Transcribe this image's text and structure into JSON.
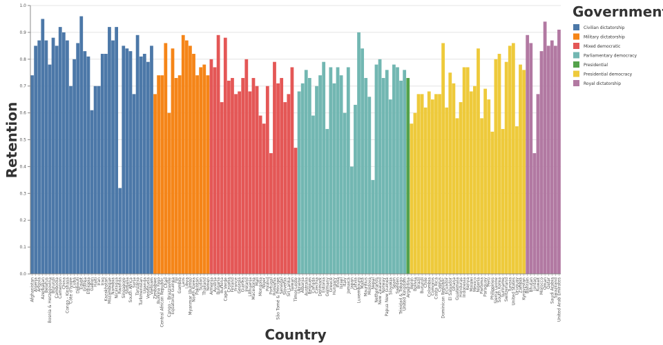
{
  "chart_data": {
    "type": "bar",
    "xlabel": "Country",
    "ylabel": "Retention",
    "ylim": [
      0,
      1
    ],
    "yticks": [
      "0.0",
      "0.1",
      "0.2",
      "0.3",
      "0.4",
      "0.5",
      "0.6",
      "0.7",
      "0.8",
      "0.9",
      "1.0"
    ],
    "grid": true,
    "legend_title": "Government",
    "legend_position": "top-right",
    "series": [
      {
        "name": "Civilian dictatorship",
        "color": "#4c78a8"
      },
      {
        "name": "Military dictatorship",
        "color": "#f58518"
      },
      {
        "name": "Mixed democratic",
        "color": "#e45756"
      },
      {
        "name": "Parliamentary democracy",
        "color": "#72b7b2"
      },
      {
        "name": "Presidential",
        "color": "#54a24b"
      },
      {
        "name": "Presidential democracy",
        "color": "#eeca3b"
      },
      {
        "name": "Royal dictatorship",
        "color": "#b279a2"
      }
    ],
    "bars": [
      {
        "c": "Afghanistan",
        "v": 0.74,
        "g": 0
      },
      {
        "c": "Algeria",
        "v": 0.85,
        "g": 0
      },
      {
        "c": "Angola",
        "v": 0.87,
        "g": 0
      },
      {
        "c": "Azerbaijan",
        "v": 0.95,
        "g": 0
      },
      {
        "c": "Belarus",
        "v": 0.87,
        "g": 0
      },
      {
        "c": "Bosnia & Herzegovina",
        "v": 0.78,
        "g": 0
      },
      {
        "c": "Burundi",
        "v": 0.88,
        "g": 0
      },
      {
        "c": "Cambodia",
        "v": 0.85,
        "g": 0
      },
      {
        "c": "Cameroon",
        "v": 0.92,
        "g": 0
      },
      {
        "c": "China",
        "v": 0.9,
        "g": 0
      },
      {
        "c": "Congo - Kinshasa",
        "v": 0.87,
        "g": 0
      },
      {
        "c": "Côte d'Ivoire",
        "v": 0.7,
        "g": 0
      },
      {
        "c": "Cuba",
        "v": 0.8,
        "g": 0
      },
      {
        "c": "Djibouti",
        "v": 0.86,
        "g": 0
      },
      {
        "c": "Egypt",
        "v": 0.96,
        "g": 0
      },
      {
        "c": "Eritrea",
        "v": 0.83,
        "g": 0
      },
      {
        "c": "Ethiopia",
        "v": 0.81,
        "g": 0
      },
      {
        "c": "Gabon",
        "v": 0.61,
        "g": 0
      },
      {
        "c": "Haiti",
        "v": 0.7,
        "g": 0
      },
      {
        "c": "Iran",
        "v": 0.7,
        "g": 0
      },
      {
        "c": "Iraq",
        "v": 0.82,
        "g": 0
      },
      {
        "c": "Kazakhstan",
        "v": 0.82,
        "g": 0
      },
      {
        "c": "Mozambique",
        "v": 0.92,
        "g": 0
      },
      {
        "c": "Namibia",
        "v": 0.87,
        "g": 0
      },
      {
        "c": "Nicaragua",
        "v": 0.92,
        "g": 0
      },
      {
        "c": "Rwanda",
        "v": 0.32,
        "g": 0
      },
      {
        "c": "Singapore",
        "v": 0.85,
        "g": 0
      },
      {
        "c": "Somalia",
        "v": 0.84,
        "g": 0
      },
      {
        "c": "South Africa",
        "v": 0.83,
        "g": 0
      },
      {
        "c": "Syria",
        "v": 0.67,
        "g": 0
      },
      {
        "c": "Tanzania",
        "v": 0.89,
        "g": 0
      },
      {
        "c": "Turkmenistan",
        "v": 0.81,
        "g": 0
      },
      {
        "c": "Uganda",
        "v": 0.82,
        "g": 0
      },
      {
        "c": "Venezuela",
        "v": 0.79,
        "g": 0
      },
      {
        "c": "Vietnam",
        "v": 0.85,
        "g": 0
      },
      {
        "c": "Zimbabwe",
        "v": 0.67,
        "g": 1
      },
      {
        "c": "Burkina Faso",
        "v": 0.74,
        "g": 1
      },
      {
        "c": "Central African Republic",
        "v": 0.74,
        "g": 1
      },
      {
        "c": "Chad",
        "v": 0.86,
        "g": 1
      },
      {
        "c": "Congo - Brazzaville",
        "v": 0.6,
        "g": 1
      },
      {
        "c": "Equatorial Guinea",
        "v": 0.84,
        "g": 1
      },
      {
        "c": "Fiji",
        "v": 0.73,
        "g": 1
      },
      {
        "c": "Gambia",
        "v": 0.74,
        "g": 1
      },
      {
        "c": "Laos",
        "v": 0.89,
        "g": 1
      },
      {
        "c": "Libya",
        "v": 0.87,
        "g": 1
      },
      {
        "c": "Myanmar (Burma)",
        "v": 0.85,
        "g": 1
      },
      {
        "c": "North Korea",
        "v": 0.82,
        "g": 1
      },
      {
        "c": "Pakistan",
        "v": 0.74,
        "g": 1
      },
      {
        "c": "Sudan",
        "v": 0.77,
        "g": 1
      },
      {
        "c": "Thailand",
        "v": 0.78,
        "g": 1
      },
      {
        "c": "Yemen",
        "v": 0.74,
        "g": 1
      },
      {
        "c": "Armenia",
        "v": 0.8,
        "g": 2
      },
      {
        "c": "Austria",
        "v": 0.77,
        "g": 2
      },
      {
        "c": "Bulgaria",
        "v": 0.89,
        "g": 2
      },
      {
        "c": "Burkina",
        "v": 0.64,
        "g": 2
      },
      {
        "c": "Cape Verde",
        "v": 0.88,
        "g": 2
      },
      {
        "c": "Croatia",
        "v": 0.72,
        "g": 2
      },
      {
        "c": "Finland",
        "v": 0.73,
        "g": 2
      },
      {
        "c": "France",
        "v": 0.67,
        "g": 2
      },
      {
        "c": "Georgia",
        "v": 0.68,
        "g": 2
      },
      {
        "c": "Guinea",
        "v": 0.73,
        "g": 2
      },
      {
        "c": "Ireland",
        "v": 0.8,
        "g": 2
      },
      {
        "c": "Lithuania",
        "v": 0.68,
        "g": 2
      },
      {
        "c": "Macedonia",
        "v": 0.73,
        "g": 2
      },
      {
        "c": "Mali",
        "v": 0.7,
        "g": 2
      },
      {
        "c": "Mongolia",
        "v": 0.59,
        "g": 2
      },
      {
        "c": "Niger",
        "v": 0.56,
        "g": 2
      },
      {
        "c": "Poland",
        "v": 0.7,
        "g": 2
      },
      {
        "c": "Portugal",
        "v": 0.45,
        "g": 2
      },
      {
        "c": "Romania",
        "v": 0.79,
        "g": 2
      },
      {
        "c": "São Tomé & Príncipe",
        "v": 0.71,
        "g": 2
      },
      {
        "c": "Senegal",
        "v": 0.73,
        "g": 2
      },
      {
        "c": "Slovenia",
        "v": 0.64,
        "g": 2
      },
      {
        "c": "Sri Lanka",
        "v": 0.67,
        "g": 2
      },
      {
        "c": "Taiwan",
        "v": 0.77,
        "g": 2
      },
      {
        "c": "Timor-Leste",
        "v": 0.47,
        "g": 2
      },
      {
        "c": "Ukraine",
        "v": 0.68,
        "g": 3
      },
      {
        "c": "Albania",
        "v": 0.71,
        "g": 3
      },
      {
        "c": "Australia",
        "v": 0.76,
        "g": 3
      },
      {
        "c": "Belgium",
        "v": 0.73,
        "g": 3
      },
      {
        "c": "Canada",
        "v": 0.59,
        "g": 3
      },
      {
        "c": "Czechia",
        "v": 0.7,
        "g": 3
      },
      {
        "c": "Denmark",
        "v": 0.74,
        "g": 3
      },
      {
        "c": "Estonia",
        "v": 0.79,
        "g": 3
      },
      {
        "c": "Germany",
        "v": 0.54,
        "g": 3
      },
      {
        "c": "Greece",
        "v": 0.77,
        "g": 3
      },
      {
        "c": "Hungary",
        "v": 0.71,
        "g": 3
      },
      {
        "c": "India",
        "v": 0.77,
        "g": 3
      },
      {
        "c": "Israel",
        "v": 0.74,
        "g": 3
      },
      {
        "c": "Italy",
        "v": 0.6,
        "g": 3
      },
      {
        "c": "Jamaica",
        "v": 0.77,
        "g": 3
      },
      {
        "c": "Japan",
        "v": 0.4,
        "g": 3
      },
      {
        "c": "Latvia",
        "v": 0.63,
        "g": 3
      },
      {
        "c": "Luxembourg",
        "v": 0.9,
        "g": 3
      },
      {
        "c": "Malta",
        "v": 0.84,
        "g": 3
      },
      {
        "c": "Mauritius",
        "v": 0.73,
        "g": 3
      },
      {
        "c": "Moldova",
        "v": 0.66,
        "g": 3
      },
      {
        "c": "Nepal",
        "v": 0.35,
        "g": 3
      },
      {
        "c": "Netherlands",
        "v": 0.78,
        "g": 3
      },
      {
        "c": "New Zealand",
        "v": 0.8,
        "g": 3
      },
      {
        "c": "Norway",
        "v": 0.73,
        "g": 3
      },
      {
        "c": "Papua New Guinea",
        "v": 0.76,
        "g": 3
      },
      {
        "c": "Slovakia",
        "v": 0.65,
        "g": 3
      },
      {
        "c": "Spain",
        "v": 0.78,
        "g": 3
      },
      {
        "c": "Sweden",
        "v": 0.77,
        "g": 3
      },
      {
        "c": "Trinidad & Tobago",
        "v": 0.72,
        "g": 3
      },
      {
        "c": "United Kingdom",
        "v": 0.76,
        "g": 3
      },
      {
        "c": "Argentina",
        "v": 0.73,
        "g": 4
      },
      {
        "c": "Benin",
        "v": 0.56,
        "g": 5
      },
      {
        "c": "Bolivia",
        "v": 0.6,
        "g": 5
      },
      {
        "c": "Brazil",
        "v": 0.67,
        "g": 5
      },
      {
        "c": "Burundi",
        "v": 0.67,
        "g": 5
      },
      {
        "c": "Chile",
        "v": 0.62,
        "g": 5
      },
      {
        "c": "Colombia",
        "v": 0.68,
        "g": 5
      },
      {
        "c": "Comoros",
        "v": 0.65,
        "g": 5
      },
      {
        "c": "Costa Rica",
        "v": 0.67,
        "g": 5
      },
      {
        "c": "Cyprus",
        "v": 0.67,
        "g": 5
      },
      {
        "c": "Dominican Republic",
        "v": 0.86,
        "g": 5
      },
      {
        "c": "Ecuador",
        "v": 0.62,
        "g": 5
      },
      {
        "c": "El Salvador",
        "v": 0.75,
        "g": 5
      },
      {
        "c": "Ghana",
        "v": 0.71,
        "g": 5
      },
      {
        "c": "Guatemala",
        "v": 0.58,
        "g": 5
      },
      {
        "c": "Honduras",
        "v": 0.64,
        "g": 5
      },
      {
        "c": "Indonesia",
        "v": 0.77,
        "g": 5
      },
      {
        "c": "Kenya",
        "v": 0.77,
        "g": 5
      },
      {
        "c": "Malawi",
        "v": 0.68,
        "g": 5
      },
      {
        "c": "Mexico",
        "v": 0.7,
        "g": 5
      },
      {
        "c": "Nigeria",
        "v": 0.84,
        "g": 5
      },
      {
        "c": "Panama",
        "v": 0.58,
        "g": 5
      },
      {
        "c": "Paraguay",
        "v": 0.69,
        "g": 5
      },
      {
        "c": "Peru",
        "v": 0.65,
        "g": 5
      },
      {
        "c": "Philippines",
        "v": 0.53,
        "g": 5
      },
      {
        "c": "Sierra Leone",
        "v": 0.8,
        "g": 5
      },
      {
        "c": "South Korea",
        "v": 0.82,
        "g": 5
      },
      {
        "c": "Suriname",
        "v": 0.54,
        "g": 5
      },
      {
        "c": "Switzerland",
        "v": 0.79,
        "g": 5
      },
      {
        "c": "Tunisia",
        "v": 0.85,
        "g": 5
      },
      {
        "c": "United States",
        "v": 0.86,
        "g": 5
      },
      {
        "c": "Uruguay",
        "v": 0.55,
        "g": 5
      },
      {
        "c": "Zambia",
        "v": 0.78,
        "g": 5
      },
      {
        "c": "Kyrgyzstan",
        "v": 0.76,
        "g": 5
      },
      {
        "c": "Bahrain",
        "v": 0.89,
        "g": 6
      },
      {
        "c": "Bhutan",
        "v": 0.86,
        "g": 6
      },
      {
        "c": "Jordan",
        "v": 0.45,
        "g": 6
      },
      {
        "c": "Kuwait",
        "v": 0.67,
        "g": 6
      },
      {
        "c": "Morocco",
        "v": 0.83,
        "g": 6
      },
      {
        "c": "Oman",
        "v": 0.94,
        "g": 6
      },
      {
        "c": "Qatar",
        "v": 0.85,
        "g": 6
      },
      {
        "c": "Saudi Arabia",
        "v": 0.87,
        "g": 6
      },
      {
        "c": "Swaziland",
        "v": 0.85,
        "g": 6
      },
      {
        "c": "United Arab Emirates",
        "v": 0.91,
        "g": 6
      }
    ]
  }
}
